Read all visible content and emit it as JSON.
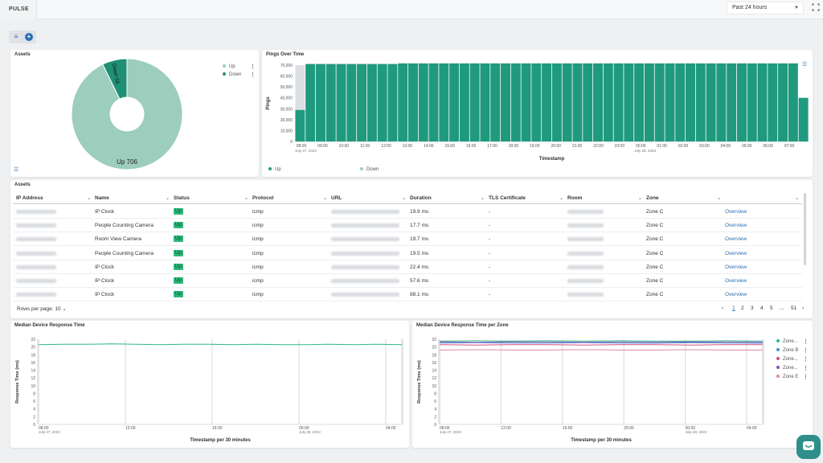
{
  "app": {
    "tab_label": "PULSE"
  },
  "time_range": {
    "selected": "Past 24 hours"
  },
  "colors": {
    "teal": "#1f9a7e",
    "teal_light": "#9ccdbd",
    "link": "#2a6fb0",
    "badge": "#2eb87a"
  },
  "assets_pie": {
    "title": "Assets",
    "legend": [
      "Up",
      "Down"
    ],
    "chart_data": {
      "type": "pie",
      "slices": [
        {
          "name": "Up",
          "value": 706,
          "color": "#9ccdbd"
        },
        {
          "name": "Down",
          "value": 55,
          "color": "#1f8f76"
        }
      ],
      "labels": {
        "up": "Up 706",
        "down": "Down 55"
      }
    }
  },
  "pings": {
    "title": "Pings Over Time",
    "legend": [
      "Up",
      "Down"
    ],
    "chart_data": {
      "type": "bar",
      "xlabel": "Timestamp",
      "ylabel": "Pings",
      "ylim": [
        0,
        70000
      ],
      "yticks": [
        "0",
        "10,000",
        "20,000",
        "30,000",
        "40,000",
        "50,000",
        "60,000",
        "70,000"
      ],
      "xticks": [
        "08:00",
        "09:00",
        "10:00",
        "11:00",
        "12:00",
        "13:00",
        "14:00",
        "15:00",
        "16:00",
        "17:00",
        "18:00",
        "19:00",
        "20:00",
        "21:00",
        "22:00",
        "23:00",
        "00:00",
        "01:00",
        "02:00",
        "03:00",
        "04:00",
        "05:00",
        "06:00",
        "07:00"
      ],
      "xdates": {
        "first": "July 27, 2023",
        "second": "July 28, 2023"
      },
      "up_values": [
        29000,
        71000,
        71000,
        71000,
        71000,
        71000,
        71000,
        71000,
        71000,
        71000,
        71500,
        71500,
        71500,
        71500,
        71500,
        71500,
        71500,
        71500,
        71500,
        71500,
        71500,
        71500,
        71500,
        71500,
        71500,
        71500,
        71500,
        71500,
        71500,
        71500,
        71500,
        71500,
        71500,
        71500,
        71500,
        71500,
        71500,
        71500,
        71500,
        71500,
        71500,
        71500,
        71500,
        71500,
        71500,
        71500,
        71500,
        71500,
        71500,
        40000
      ],
      "down_values": [
        41000,
        500,
        500,
        500,
        500,
        500,
        500,
        500,
        500,
        500,
        500,
        500,
        500,
        500,
        500,
        500,
        500,
        500,
        500,
        500,
        500,
        500,
        500,
        500,
        500,
        500,
        500,
        500,
        500,
        500,
        500,
        500,
        500,
        500,
        500,
        500,
        500,
        500,
        500,
        500,
        500,
        500,
        500,
        500,
        500,
        500,
        500,
        500,
        500,
        0
      ]
    }
  },
  "assets_table": {
    "title": "Assets",
    "columns": [
      "IP Address",
      "Name",
      "Status",
      "Protocol",
      "URL",
      "Duration",
      "TLS Certificate",
      "Room",
      "Zone",
      ""
    ],
    "rows": [
      {
        "name": "IP Clock",
        "status": "Up",
        "protocol": "icmp",
        "duration": "19.9 ms",
        "tls": "-",
        "zone": "Zone C",
        "action": "Overview"
      },
      {
        "name": "People Counting Camera",
        "status": "Up",
        "protocol": "icmp",
        "duration": "17.7 ms",
        "tls": "-",
        "zone": "Zone C",
        "action": "Overview"
      },
      {
        "name": "Room View Camera",
        "status": "Up",
        "protocol": "icmp",
        "duration": "19.7 ms",
        "tls": "-",
        "zone": "Zone C",
        "action": "Overview"
      },
      {
        "name": "People Counting Camera",
        "status": "Up",
        "protocol": "icmp",
        "duration": "19.5 ms",
        "tls": "-",
        "zone": "Zone C",
        "action": "Overview"
      },
      {
        "name": "IP Clock",
        "status": "Up",
        "protocol": "icmp",
        "duration": "22.4 ms",
        "tls": "-",
        "zone": "Zone C",
        "action": "Overview"
      },
      {
        "name": "IP Clock",
        "status": "Up",
        "protocol": "icmp",
        "duration": "57.6 ms",
        "tls": "-",
        "zone": "Zone C",
        "action": "Overview"
      },
      {
        "name": "IP Clock",
        "status": "Up",
        "protocol": "icmp",
        "duration": "88.1 ms",
        "tls": "-",
        "zone": "Zone C",
        "action": "Overview"
      }
    ],
    "rows_per_page": "Rows per page: 10",
    "pages": [
      "1",
      "2",
      "3",
      "4",
      "5",
      "...",
      "51"
    ]
  },
  "median_response": {
    "title": "Median Device Response Time",
    "chart_data": {
      "type": "line",
      "xlabel": "Timestamp per 30 minutes",
      "ylabel": "Response Time (ms)",
      "ylim": [
        0,
        22
      ],
      "yticks": [
        "0",
        "2",
        "4",
        "6",
        "8",
        "10",
        "12",
        "14",
        "16",
        "18",
        "20",
        "22"
      ],
      "xticks": [
        "08:00",
        "12:00",
        "16:00",
        "00:00",
        "04:00"
      ],
      "xdates": {
        "first": "July 27, 2023",
        "second": "July 28, 2023"
      },
      "series": [
        {
          "values": [
            20.6,
            20.7,
            20.7,
            20.8,
            20.7,
            20.6,
            20.7,
            20.7,
            20.6,
            20.7,
            20.6,
            20.6,
            20.7,
            20.6,
            20.7,
            20.6
          ]
        }
      ]
    }
  },
  "median_zone": {
    "title": "Median Device Response Time per Zone",
    "chart_data": {
      "type": "line",
      "xlabel": "Timestamp per 30 minutes",
      "ylabel": "Response Time (ms)",
      "ylim": [
        0,
        22
      ],
      "yticks": [
        "0",
        "2",
        "4",
        "6",
        "8",
        "10",
        "12",
        "14",
        "16",
        "18",
        "20",
        "22"
      ],
      "xticks": [
        "08:00",
        "12:00",
        "16:00",
        "20:00",
        "00:00",
        "04:00"
      ],
      "xdates": {
        "first": "July 27, 2023",
        "second": "July 28, 2023"
      },
      "series": [
        {
          "name": "Zone...",
          "color": "#2db88f",
          "values": [
            21.5,
            21.6,
            21.5,
            21.6,
            21.5,
            21.6,
            21.5,
            21.5,
            21.6,
            21.5
          ]
        },
        {
          "name": "Zone B",
          "color": "#4a8ed0",
          "values": [
            21.0,
            21.1,
            21.0,
            21.0,
            21.1,
            21.0,
            21.0,
            21.1,
            21.0,
            21.0
          ]
        },
        {
          "name": "Zone...",
          "color": "#d6507a",
          "values": [
            20.6,
            20.5,
            20.6,
            20.6,
            20.5,
            20.6,
            20.6,
            20.5,
            20.6,
            20.6
          ]
        },
        {
          "name": "Zone...",
          "color": "#8a4fb8",
          "values": [
            21.3,
            21.2,
            21.3,
            21.3,
            21.2,
            21.3,
            21.2,
            21.3,
            21.3,
            21.2
          ]
        },
        {
          "name": "Zone E",
          "color": "#e08aa0",
          "values": [
            19.2,
            19.3,
            19.2,
            19.2,
            19.3,
            19.2,
            19.2,
            19.3,
            19.2,
            19.2
          ]
        }
      ]
    }
  }
}
